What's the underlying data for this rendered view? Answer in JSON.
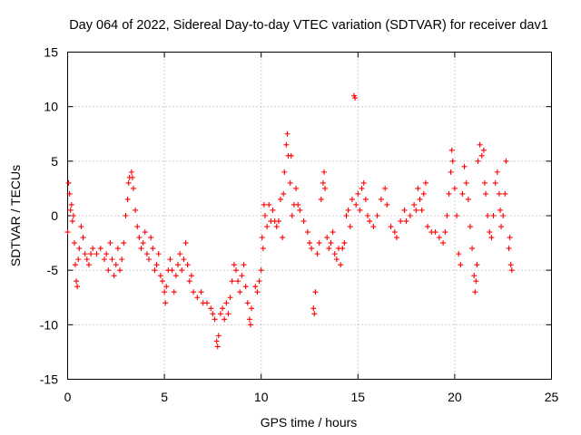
{
  "chart_data": {
    "type": "scatter",
    "title": "Day 064 of 2022, Sidereal Day-to-day VTEC variation (SDTVAR) for receiver dav1",
    "xlabel": "GPS time / hours",
    "ylabel": "SDTVAR / TECUs",
    "xlim": [
      0,
      25
    ],
    "ylim": [
      -15,
      15
    ],
    "xticks": [
      "0",
      "5",
      "10",
      "15",
      "20",
      "25"
    ],
    "yticks": [
      "-15",
      "-10",
      "-5",
      "0",
      "5",
      "10",
      "15"
    ],
    "grid": true,
    "marker": "plus",
    "series": [
      {
        "name": "dav1",
        "color": "#ff0000",
        "points": [
          [
            0.0,
            -1.5
          ],
          [
            0.05,
            3.0
          ],
          [
            0.1,
            2.0
          ],
          [
            0.15,
            0.5
          ],
          [
            0.2,
            1.0
          ],
          [
            0.25,
            -0.5
          ],
          [
            0.3,
            0.0
          ],
          [
            0.35,
            -2.5
          ],
          [
            0.4,
            -4.5
          ],
          [
            0.45,
            -6.0
          ],
          [
            0.5,
            -6.5
          ],
          [
            0.55,
            -4.0
          ],
          [
            0.6,
            -3.0
          ],
          [
            0.7,
            -1.0
          ],
          [
            0.8,
            -2.0
          ],
          [
            0.9,
            -3.5
          ],
          [
            1.0,
            -4.0
          ],
          [
            1.1,
            -4.5
          ],
          [
            1.2,
            -3.5
          ],
          [
            1.3,
            -3.0
          ],
          [
            1.5,
            -3.5
          ],
          [
            1.7,
            -3.0
          ],
          [
            1.9,
            -4.0
          ],
          [
            2.0,
            -3.5
          ],
          [
            2.1,
            -5.0
          ],
          [
            2.2,
            -2.5
          ],
          [
            2.3,
            -4.0
          ],
          [
            2.4,
            -5.5
          ],
          [
            2.5,
            -4.5
          ],
          [
            2.6,
            -3.0
          ],
          [
            2.7,
            -5.0
          ],
          [
            2.8,
            -4.0
          ],
          [
            2.9,
            -2.5
          ],
          [
            3.0,
            0.0
          ],
          [
            3.1,
            1.5
          ],
          [
            3.15,
            3.0
          ],
          [
            3.2,
            3.5
          ],
          [
            3.3,
            4.0
          ],
          [
            3.35,
            3.5
          ],
          [
            3.4,
            2.5
          ],
          [
            3.5,
            0.5
          ],
          [
            3.6,
            -1.0
          ],
          [
            3.7,
            -2.0
          ],
          [
            3.8,
            -3.0
          ],
          [
            3.9,
            -2.5
          ],
          [
            4.0,
            -1.5
          ],
          [
            4.1,
            -3.5
          ],
          [
            4.2,
            -4.0
          ],
          [
            4.3,
            -2.0
          ],
          [
            4.4,
            -3.0
          ],
          [
            4.5,
            -5.0
          ],
          [
            4.6,
            -4.5
          ],
          [
            4.7,
            -3.5
          ],
          [
            4.8,
            -5.5
          ],
          [
            4.9,
            -6.0
          ],
          [
            5.0,
            -7.0
          ],
          [
            5.05,
            -8.0
          ],
          [
            5.1,
            -6.5
          ],
          [
            5.2,
            -5.0
          ],
          [
            5.3,
            -4.0
          ],
          [
            5.4,
            -5.0
          ],
          [
            5.5,
            -7.0
          ],
          [
            5.6,
            -5.5
          ],
          [
            5.7,
            -4.5
          ],
          [
            5.8,
            -3.5
          ],
          [
            5.9,
            -5.0
          ],
          [
            6.0,
            -4.0
          ],
          [
            6.1,
            -2.5
          ],
          [
            6.2,
            -4.5
          ],
          [
            6.3,
            -6.0
          ],
          [
            6.4,
            -5.5
          ],
          [
            6.5,
            -7.0
          ],
          [
            6.7,
            -7.5
          ],
          [
            6.9,
            -7.0
          ],
          [
            7.0,
            -8.0
          ],
          [
            7.2,
            -8.0
          ],
          [
            7.4,
            -8.5
          ],
          [
            7.5,
            -9.0
          ],
          [
            7.6,
            -9.5
          ],
          [
            7.7,
            -11.5
          ],
          [
            7.75,
            -12.0
          ],
          [
            7.8,
            -11.0
          ],
          [
            7.9,
            -9.0
          ],
          [
            8.0,
            -8.5
          ],
          [
            8.1,
            -9.5
          ],
          [
            8.2,
            -8.0
          ],
          [
            8.3,
            -9.0
          ],
          [
            8.4,
            -7.5
          ],
          [
            8.5,
            -6.0
          ],
          [
            8.6,
            -4.5
          ],
          [
            8.7,
            -5.0
          ],
          [
            8.8,
            -6.0
          ],
          [
            8.9,
            -7.0
          ],
          [
            9.0,
            -5.5
          ],
          [
            9.1,
            -4.5
          ],
          [
            9.2,
            -6.5
          ],
          [
            9.3,
            -8.0
          ],
          [
            9.4,
            -9.5
          ],
          [
            9.45,
            -10.0
          ],
          [
            9.5,
            -8.5
          ],
          [
            9.7,
            -6.5
          ],
          [
            9.8,
            -7.0
          ],
          [
            9.9,
            -6.0
          ],
          [
            10.0,
            -5.0
          ],
          [
            10.05,
            -2.0
          ],
          [
            10.1,
            -3.0
          ],
          [
            10.15,
            1.0
          ],
          [
            10.2,
            0.0
          ],
          [
            10.3,
            -1.0
          ],
          [
            10.4,
            1.0
          ],
          [
            10.5,
            -0.5
          ],
          [
            10.6,
            0.5
          ],
          [
            10.7,
            -0.5
          ],
          [
            10.8,
            -1.0
          ],
          [
            10.9,
            -0.5
          ],
          [
            11.0,
            1.5
          ],
          [
            11.1,
            -2.0
          ],
          [
            11.15,
            2.0
          ],
          [
            11.2,
            4.0
          ],
          [
            11.3,
            6.5
          ],
          [
            11.35,
            7.5
          ],
          [
            11.4,
            5.5
          ],
          [
            11.5,
            3.0
          ],
          [
            11.55,
            5.5
          ],
          [
            11.6,
            0.0
          ],
          [
            11.7,
            1.0
          ],
          [
            11.8,
            2.5
          ],
          [
            11.9,
            1.0
          ],
          [
            12.0,
            0.5
          ],
          [
            12.2,
            -0.5
          ],
          [
            12.4,
            -1.5
          ],
          [
            12.5,
            -2.5
          ],
          [
            12.6,
            -3.0
          ],
          [
            12.7,
            -8.5
          ],
          [
            12.75,
            -9.0
          ],
          [
            12.8,
            -7.0
          ],
          [
            12.9,
            -3.5
          ],
          [
            13.0,
            -2.5
          ],
          [
            13.1,
            1.5
          ],
          [
            13.2,
            3.0
          ],
          [
            13.25,
            4.0
          ],
          [
            13.3,
            2.5
          ],
          [
            13.4,
            -2.0
          ],
          [
            13.5,
            -3.0
          ],
          [
            13.6,
            -2.5
          ],
          [
            13.7,
            -1.5
          ],
          [
            13.8,
            -3.5
          ],
          [
            13.9,
            -4.0
          ],
          [
            14.0,
            -3.0
          ],
          [
            14.1,
            -4.5
          ],
          [
            14.2,
            -3.0
          ],
          [
            14.3,
            -2.5
          ],
          [
            14.4,
            0.0
          ],
          [
            14.5,
            0.5
          ],
          [
            14.6,
            -1.0
          ],
          [
            14.7,
            1.5
          ],
          [
            14.8,
            11.0
          ],
          [
            14.85,
            10.8
          ],
          [
            14.9,
            1.0
          ],
          [
            15.0,
            2.0
          ],
          [
            15.1,
            0.5
          ],
          [
            15.2,
            2.5
          ],
          [
            15.3,
            3.0
          ],
          [
            15.4,
            1.5
          ],
          [
            15.5,
            0.0
          ],
          [
            15.6,
            -0.5
          ],
          [
            15.8,
            -1.0
          ],
          [
            16.0,
            0.0
          ],
          [
            16.2,
            1.5
          ],
          [
            16.4,
            2.5
          ],
          [
            16.5,
            1.0
          ],
          [
            16.7,
            -1.0
          ],
          [
            16.9,
            -1.5
          ],
          [
            17.0,
            -2.0
          ],
          [
            17.2,
            -0.5
          ],
          [
            17.4,
            0.5
          ],
          [
            17.5,
            -0.5
          ],
          [
            17.7,
            0.0
          ],
          [
            17.9,
            1.0
          ],
          [
            18.0,
            0.5
          ],
          [
            18.1,
            2.5
          ],
          [
            18.2,
            1.5
          ],
          [
            18.3,
            0.5
          ],
          [
            18.4,
            2.0
          ],
          [
            18.5,
            3.0
          ],
          [
            18.6,
            -1.0
          ],
          [
            18.8,
            -1.5
          ],
          [
            19.0,
            -1.5
          ],
          [
            19.2,
            -2.0
          ],
          [
            19.4,
            -2.5
          ],
          [
            19.5,
            -1.5
          ],
          [
            19.6,
            0.0
          ],
          [
            19.7,
            2.0
          ],
          [
            19.8,
            4.0
          ],
          [
            19.85,
            6.0
          ],
          [
            19.9,
            5.0
          ],
          [
            20.0,
            2.5
          ],
          [
            20.1,
            0.0
          ],
          [
            20.2,
            -3.5
          ],
          [
            20.3,
            -4.5
          ],
          [
            20.4,
            2.0
          ],
          [
            20.5,
            4.5
          ],
          [
            20.6,
            3.0
          ],
          [
            20.7,
            1.5
          ],
          [
            20.8,
            -1.0
          ],
          [
            20.9,
            -3.0
          ],
          [
            21.0,
            -5.5
          ],
          [
            21.05,
            -7.0
          ],
          [
            21.1,
            -6.0
          ],
          [
            21.15,
            -4.5
          ],
          [
            21.2,
            5.0
          ],
          [
            21.3,
            6.5
          ],
          [
            21.4,
            5.5
          ],
          [
            21.5,
            6.0
          ],
          [
            21.55,
            3.0
          ],
          [
            21.6,
            2.0
          ],
          [
            21.7,
            0.0
          ],
          [
            21.8,
            -1.5
          ],
          [
            21.9,
            -2.0
          ],
          [
            22.0,
            0.0
          ],
          [
            22.1,
            3.0
          ],
          [
            22.2,
            4.0
          ],
          [
            22.3,
            2.0
          ],
          [
            22.35,
            0.5
          ],
          [
            22.4,
            -1.0
          ],
          [
            22.5,
            0.0
          ],
          [
            22.6,
            2.0
          ],
          [
            22.65,
            5.0
          ],
          [
            22.8,
            -3.0
          ],
          [
            22.85,
            -2.0
          ],
          [
            22.9,
            -4.5
          ],
          [
            22.95,
            -5.0
          ]
        ]
      }
    ]
  }
}
